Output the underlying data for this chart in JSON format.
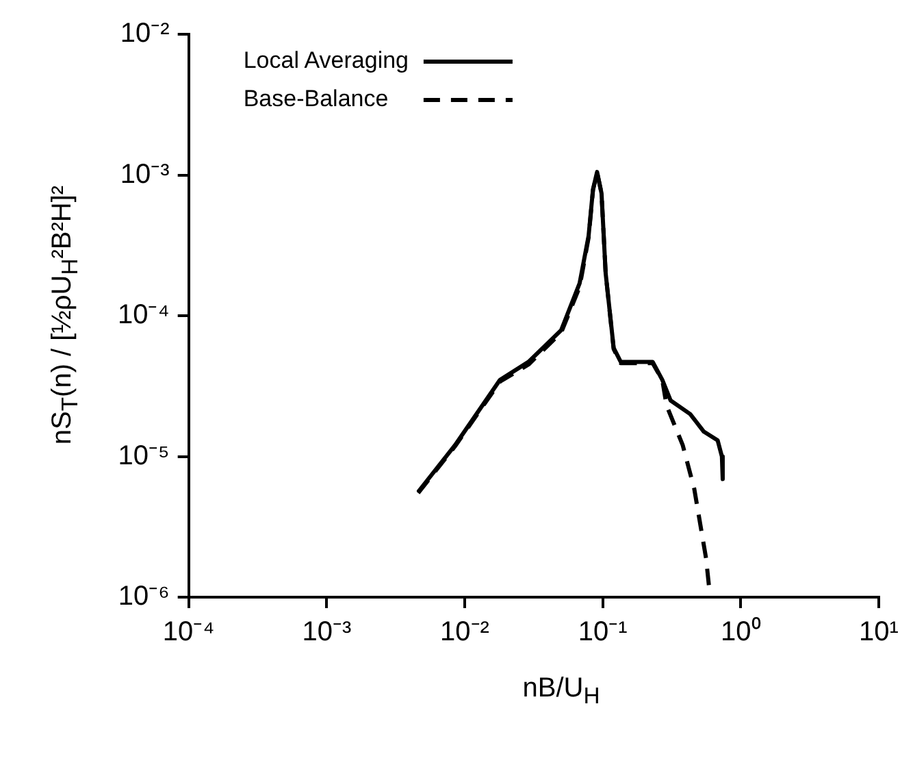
{
  "chart_data": {
    "type": "line",
    "xlabel": "nB/U$_{H}$",
    "ylabel": "nS$_{T}$(n) / [½ρU$_{H}$²B²H]²",
    "log": "xy",
    "xlim": [
      0.0001,
      10
    ],
    "ylim": [
      1e-06,
      0.01
    ],
    "xticks": [
      {
        "value": 0.0001,
        "label": "10⁻⁴"
      },
      {
        "value": 0.001,
        "label": "10⁻³"
      },
      {
        "value": 0.01,
        "label": "10⁻²"
      },
      {
        "value": 0.1,
        "label": "10⁻¹"
      },
      {
        "value": 1,
        "label": "10⁰"
      },
      {
        "value": 10,
        "label": "10¹"
      }
    ],
    "yticks": [
      {
        "value": 1e-06,
        "label": "10⁻⁶"
      },
      {
        "value": 1e-05,
        "label": "10⁻⁵"
      },
      {
        "value": 0.0001,
        "label": "10⁻⁴"
      },
      {
        "value": 0.001,
        "label": "10⁻³"
      },
      {
        "value": 0.01,
        "label": "10⁻²"
      }
    ],
    "grid": false,
    "legend": "top left",
    "marker": "none",
    "series": [
      {
        "name": "Local Averaging",
        "color": "#000000",
        "line_style": "solid",
        "x": [
          0.0046,
          0.0085,
          0.018,
          0.029,
          0.05,
          0.068,
          0.079,
          0.085,
          0.091,
          0.098,
          0.105,
          0.12,
          0.135,
          0.18,
          0.23,
          0.27,
          0.31,
          0.43,
          0.54,
          0.68,
          0.73,
          0.74
        ],
        "values": [
          5.6e-06,
          1.2e-05,
          3.5e-05,
          4.7e-05,
          7.9e-05,
          0.00017,
          0.00037,
          0.00079,
          0.00105,
          0.00074,
          0.0002,
          5.9e-05,
          4.7e-05,
          4.7e-05,
          4.7e-05,
          3.5e-05,
          2.5e-05,
          2e-05,
          1.5e-05,
          1.3e-05,
          1e-05,
          6.9e-06
        ]
      },
      {
        "name": "Base-Balance",
        "color": "#000000",
        "line_style": "dashed",
        "x": [
          0.0046,
          0.0085,
          0.018,
          0.029,
          0.05,
          0.068,
          0.079,
          0.085,
          0.091,
          0.098,
          0.105,
          0.12,
          0.135,
          0.18,
          0.23,
          0.27,
          0.29,
          0.38,
          0.46,
          0.56,
          0.6
        ],
        "values": [
          5.5e-06,
          1.18e-05,
          3.4e-05,
          4.5e-05,
          7.6e-05,
          0.00016,
          0.00036,
          0.00078,
          0.00104,
          0.00074,
          0.0002,
          5.8e-05,
          4.6e-05,
          4.6e-05,
          4.6e-05,
          3.5e-05,
          2.3e-05,
          1.2e-05,
          5.9e-06,
          1.9e-06,
          1e-06
        ]
      }
    ]
  }
}
